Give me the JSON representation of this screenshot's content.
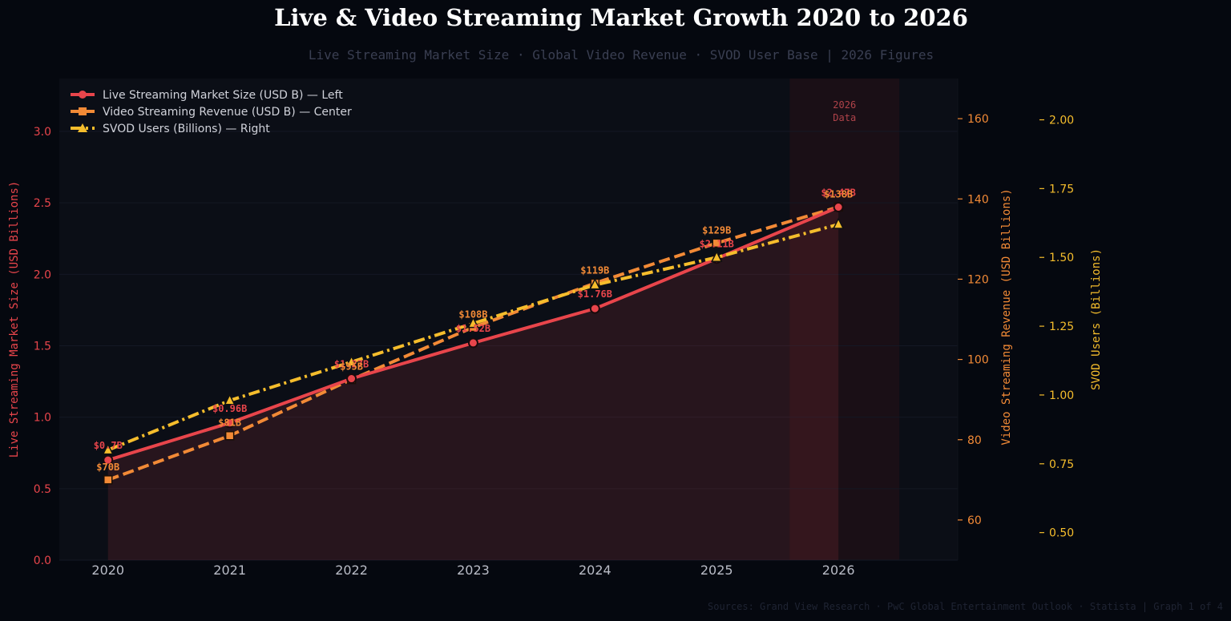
{
  "title": "Live & Video Streaming Market Growth  2020 to 2026",
  "subtitle": "Live Streaming Market Size  ·  Global Video Revenue  ·  SVOD User Base  |  2026 Figures",
  "source": "Sources: Grand View Research · PwC Global Entertainment Outlook · Statista  |  Graph 1 of 4",
  "colors": {
    "background": "#05080f",
    "plot": "#0b0e16",
    "live": "#e8454b",
    "video": "#f28a36",
    "svod": "#f5bd2c"
  },
  "chart_data": {
    "type": "line",
    "x": [
      2020,
      2021,
      2022,
      2023,
      2024,
      2025,
      2026
    ],
    "xlim": [
      2019.6,
      2026.98
    ],
    "highlight": {
      "x_range": [
        2025.6,
        2026.5
      ],
      "label_line1": "2026",
      "label_line2": "Data"
    },
    "grid": true,
    "legend_position": "top-left",
    "axes": {
      "left": {
        "label": "Live Streaming Market Size (USD Billions)",
        "ylim": [
          0,
          3.37
        ],
        "ticks": [
          0.0,
          0.5,
          1.0,
          1.5,
          2.0,
          2.5,
          3.0
        ],
        "tick_labels": [
          "0.0",
          "0.5",
          "1.0",
          "1.5",
          "2.0",
          "2.5",
          "3.0"
        ]
      },
      "center": {
        "label": "Video Streaming Revenue (USD Billions)",
        "ylim": [
          50,
          170
        ],
        "ticks": [
          60,
          80,
          100,
          120,
          140,
          160
        ],
        "tick_labels": [
          "60",
          "80",
          "100",
          "120",
          "140",
          "160"
        ]
      },
      "right": {
        "label": "SVOD Users (Billions)",
        "ylim": [
          0.4,
          2.15
        ],
        "ticks": [
          0.5,
          0.75,
          1.0,
          1.25,
          1.5,
          1.75,
          2.0
        ],
        "tick_labels": [
          "0.50",
          "0.75",
          "1.00",
          "1.25",
          "1.50",
          "1.75",
          "2.00"
        ]
      }
    },
    "series": [
      {
        "name": "Live Streaming Market Size (USD B) — Left",
        "axis": "left",
        "marker": "circle",
        "style": "solid",
        "values": [
          0.7,
          0.96,
          1.27,
          1.52,
          1.76,
          2.11,
          2.47
        ],
        "labels": [
          "$0.7B",
          "$0.96B",
          "$1.27B",
          "$1.52B",
          "$1.76B",
          "$2.11B",
          "$2.47B"
        ]
      },
      {
        "name": "Video Streaming Revenue (USD B) — Center",
        "axis": "center",
        "marker": "square",
        "style": "dashed",
        "values": [
          70,
          81,
          95,
          108,
          119,
          129,
          138
        ],
        "labels": [
          "$70B",
          "$81B",
          "$95B",
          "$108B",
          "$119B",
          "$129B",
          "$138B"
        ]
      },
      {
        "name": "SVOD Users (Billions) — Right",
        "axis": "right",
        "marker": "triangle",
        "style": "dashdot",
        "values": [
          0.8,
          0.98,
          1.12,
          1.26,
          1.4,
          1.5,
          1.62
        ]
      }
    ]
  }
}
